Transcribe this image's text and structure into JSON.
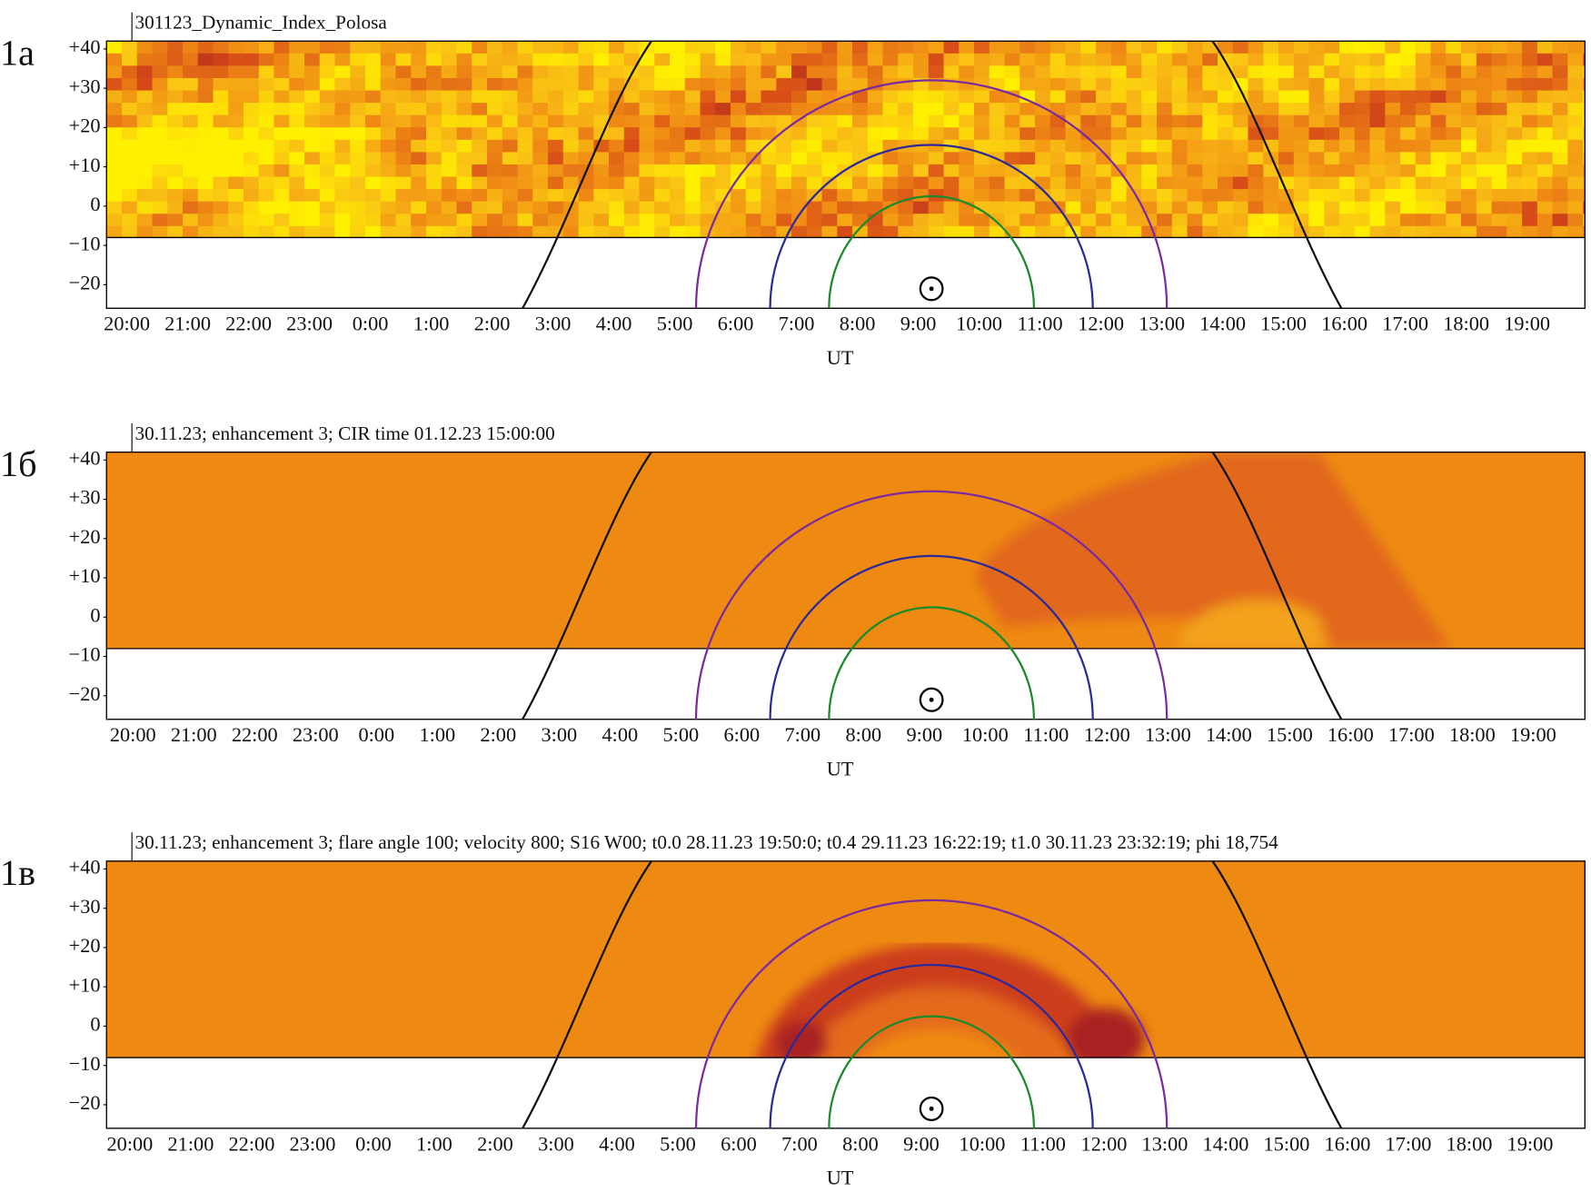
{
  "chart_data": [
    {
      "type": "heatmap",
      "panel_label": "1а",
      "title": "301123_Dynamic_Index_Polosa",
      "xlabel": "UT",
      "categories": [
        "20:00",
        "21:00",
        "22:00",
        "23:00",
        "0:00",
        "1:00",
        "2:00",
        "3:00",
        "4:00",
        "5:00",
        "6:00",
        "7:00",
        "8:00",
        "9:00",
        "10:00",
        "11:00",
        "12:00",
        "13:00",
        "14:00",
        "15:00",
        "16:00",
        "17:00",
        "18:00",
        "19:00"
      ],
      "ylim": [
        -26,
        42
      ],
      "yticks": [
        {
          "value": 40,
          "label": "+40"
        },
        {
          "value": 30,
          "label": "+30"
        },
        {
          "value": 20,
          "label": "+20"
        },
        {
          "value": 10,
          "label": "+10"
        },
        0,
        {
          "value": -10,
          "label": "−10"
        },
        {
          "value": -20,
          "label": "−20"
        }
      ]
    },
    {
      "type": "heatmap",
      "panel_label": "1б",
      "title": "30.11.23; enhancement 3; CIR time 01.12.23 15:00:00",
      "xlabel": "UT",
      "categories": [
        "20:00",
        "21:00",
        "22:00",
        "23:00",
        "0:00",
        "1:00",
        "2:00",
        "3:00",
        "4:00",
        "5:00",
        "6:00",
        "7:00",
        "8:00",
        "9:00",
        "10:00",
        "11:00",
        "12:00",
        "13:00",
        "14:00",
        "15:00",
        "16:00",
        "17:00",
        "18:00",
        "19:00"
      ],
      "ylim": [
        -26,
        42
      ],
      "yticks": [
        {
          "value": 40,
          "label": "+40"
        },
        {
          "value": 30,
          "label": "+30"
        },
        {
          "value": 20,
          "label": "+20"
        },
        {
          "value": 10,
          "label": "+10"
        },
        0,
        {
          "value": -10,
          "label": "−10"
        },
        {
          "value": -20,
          "label": "−20"
        }
      ]
    },
    {
      "type": "heatmap",
      "panel_label": "1в",
      "title": "30.11.23; enhancement 3; flare angle 100; velocity 800; S16 W00; t0.0 28.11.23 19:50:0; t0.4 29.11.23 16:22:19; t1.0 30.11.23 23:32:19; phi 18,754",
      "xlabel": "UT",
      "categories": [
        "20:00",
        "21:00",
        "22:00",
        "23:00",
        "0:00",
        "1:00",
        "2:00",
        "3:00",
        "4:00",
        "5:00",
        "6:00",
        "7:00",
        "8:00",
        "9:00",
        "10:00",
        "11:00",
        "12:00",
        "13:00",
        "14:00",
        "15:00",
        "16:00",
        "17:00",
        "18:00",
        "19:00"
      ],
      "ylim": [
        -26,
        42
      ],
      "yticks": [
        {
          "value": 40,
          "label": "+40"
        },
        {
          "value": 30,
          "label": "+30"
        },
        {
          "value": 20,
          "label": "+20"
        },
        {
          "value": 10,
          "label": "+10"
        },
        0,
        {
          "value": -10,
          "label": "−10"
        },
        {
          "value": -20,
          "label": "−20"
        }
      ]
    }
  ]
}
